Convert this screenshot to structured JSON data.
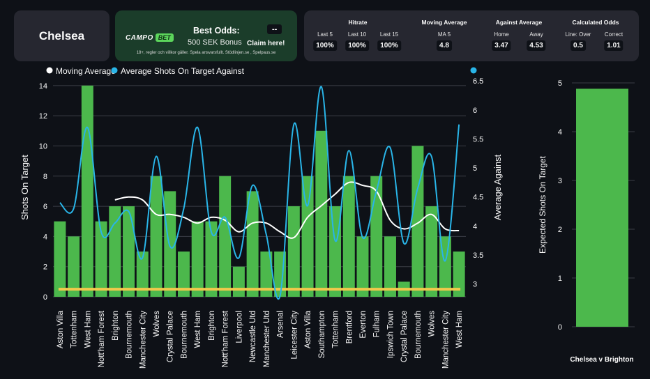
{
  "team": "Chelsea",
  "promo": {
    "logo_part1": "CAMPO",
    "logo_part2": "BET",
    "title": "Best Odds:",
    "value": "--",
    "bonus": "500 SEK Bonus",
    "claim": "Claim here!",
    "disclaimer": "18+, regler och villkor gäller. Spela ansvarsfullt. Stödlinjen.se , Spelpaus.se"
  },
  "stats": {
    "groups": [
      {
        "title": "Hitrate",
        "items": [
          {
            "label": "Last 5",
            "value": "100%"
          },
          {
            "label": "Last 10",
            "value": "100%"
          },
          {
            "label": "Last 15",
            "value": "100%"
          }
        ]
      },
      {
        "title": "Moving Average",
        "items": [
          {
            "label": "MA 5",
            "value": "4.8"
          }
        ]
      },
      {
        "title": "Against Average",
        "items": [
          {
            "label": "Home",
            "value": "3.47"
          },
          {
            "label": "Away",
            "value": "4.53"
          }
        ]
      },
      {
        "title": "Calculated Odds",
        "items": [
          {
            "label": "Line: Over",
            "value": "0.5"
          },
          {
            "label": "Correct",
            "value": "1.01"
          }
        ]
      }
    ]
  },
  "chart_data": [
    {
      "type": "bar",
      "ylabel": "Shots On Target",
      "y2label": "Average Against",
      "ylim": [
        0,
        14.5
      ],
      "y2lim": [
        2.78,
        6.55
      ],
      "yticks": [
        0,
        2,
        4,
        6,
        8,
        10,
        12,
        14
      ],
      "y2ticks": [
        3,
        3.5,
        4,
        4.5,
        5,
        5.5,
        6,
        6.5
      ],
      "legend_position": "top-left",
      "colors": {
        "bar": "#4cb84c",
        "moving_average": "#ffffff",
        "against": "#29b5e8",
        "line": "#f2c94c",
        "grid": "#3a3d46"
      },
      "categories": [
        "Aston Villa",
        "Tottenham",
        "West Ham",
        "Nott'ham Forest",
        "Brighton",
        "Bournemouth",
        "Manchester City",
        "Wolves",
        "Crystal Palace",
        "Bournemouth",
        "West Ham",
        "Brighton",
        "Nott'ham Forest",
        "Liverpool",
        "Newcastle Utd",
        "Manchester Utd",
        "Arsenal",
        "Leicester City",
        "Aston Villa",
        "Southampton",
        "Tottenham",
        "Brentford",
        "Everton",
        "Fulham",
        "Ipswich Town",
        "Crystal Palace",
        "Bournemouth",
        "Wolves",
        "Manchester City",
        "West Ham"
      ],
      "values": [
        5,
        4,
        14,
        5,
        6,
        6,
        3,
        8,
        7,
        3,
        5,
        5,
        8,
        2,
        7,
        3,
        3,
        6,
        8,
        11,
        6,
        8,
        4,
        8,
        4,
        1,
        10,
        6,
        4,
        3
      ],
      "series": [
        {
          "name": "Moving Average",
          "axis": "right",
          "values": [
            null,
            null,
            null,
            null,
            4.45,
            4.5,
            4.45,
            4.2,
            4.2,
            4.15,
            4.05,
            4.15,
            4.1,
            3.9,
            4.05,
            4.05,
            3.9,
            3.8,
            4.15,
            4.35,
            4.55,
            4.75,
            4.7,
            4.6,
            4.1,
            3.95,
            4.05,
            4.2,
            3.95,
            3.92
          ]
        },
        {
          "name": "Average Shots On Target Against",
          "axis": "right",
          "values": [
            4.4,
            4.3,
            5.7,
            3.9,
            4.05,
            4.25,
            3.45,
            5.2,
            3.65,
            4.3,
            5.7,
            3.9,
            4.15,
            3.45,
            4.7,
            3.85,
            2.8,
            5.75,
            4.35,
            6.4,
            3.75,
            5.3,
            3.8,
            4.6,
            5.35,
            3.7,
            4.65,
            5.2,
            3.4,
            5.75
          ]
        }
      ],
      "line_value": 0.5
    },
    {
      "type": "bar",
      "ylabel": "Expected Shots On Target",
      "categories": [
        "Chelsea v Brighton"
      ],
      "values": [
        4.88
      ],
      "ylim": [
        0,
        5.12
      ],
      "yticks": [
        0,
        1,
        2,
        3,
        4,
        5
      ]
    }
  ]
}
